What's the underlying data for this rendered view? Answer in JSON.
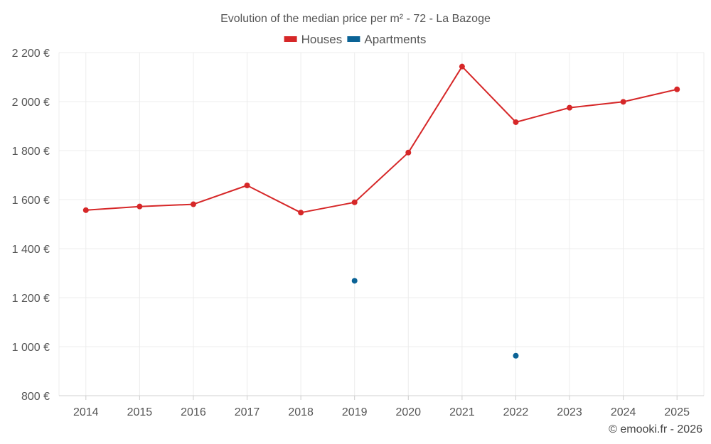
{
  "chart_data": {
    "type": "line",
    "title": "Evolution of the median price per m² - 72 - La Bazoge",
    "categories": [
      "2014",
      "2015",
      "2016",
      "2017",
      "2018",
      "2019",
      "2020",
      "2021",
      "2022",
      "2023",
      "2024",
      "2025"
    ],
    "series": [
      {
        "name": "Houses",
        "color": "#d62728",
        "values": [
          1557,
          1572,
          1581,
          1658,
          1547,
          1589,
          1792,
          2143,
          1916,
          1975,
          1999,
          2050
        ]
      },
      {
        "name": "Apartments",
        "color": "#0b6396",
        "values": [
          null,
          null,
          null,
          null,
          null,
          1269,
          null,
          null,
          963,
          null,
          null,
          null
        ]
      }
    ],
    "yticks": [
      "800 €",
      "1 000 €",
      "1 200 €",
      "1 400 €",
      "1 600 €",
      "1 800 €",
      "2 000 €",
      "2 200 €"
    ],
    "ytick_values": [
      800,
      1000,
      1200,
      1400,
      1600,
      1800,
      2000,
      2200
    ],
    "ylim": [
      800,
      2200
    ],
    "grid": true,
    "legend_position": "top-center",
    "xlabel": "",
    "ylabel": ""
  },
  "credit": "© emooki.fr - 2026"
}
